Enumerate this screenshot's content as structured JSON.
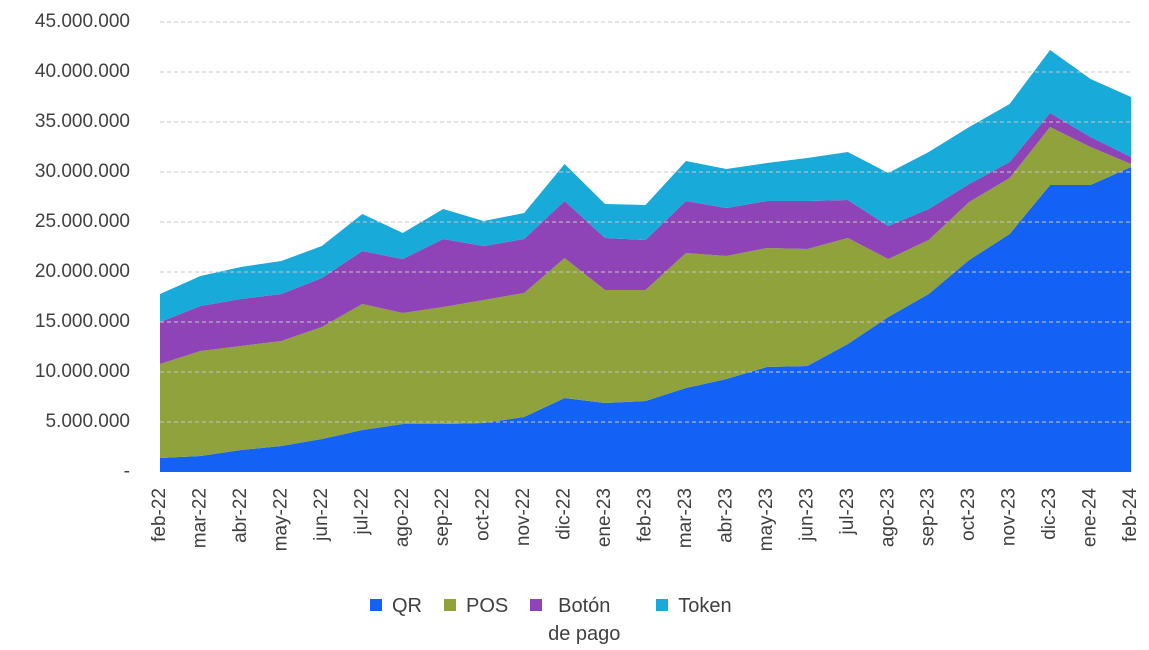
{
  "chart_data": {
    "type": "stacked_area",
    "categories": [
      "feb-22",
      "mar-22",
      "abr-22",
      "may-22",
      "jun-22",
      "jul-22",
      "ago-22",
      "sep-22",
      "oct-22",
      "nov-22",
      "dic-22",
      "ene-23",
      "feb-23",
      "mar-23",
      "abr-23",
      "may-23",
      "jun-23",
      "jul-23",
      "ago-23",
      "sep-23",
      "oct-23",
      "nov-23",
      "dic-23",
      "ene-24",
      "feb-24"
    ],
    "series": [
      {
        "name": "QR",
        "color": "#1462f5",
        "values": [
          1400000,
          1600000,
          2200000,
          2600000,
          3300000,
          4200000,
          4800000,
          4800000,
          4900000,
          5500000,
          7400000,
          6900000,
          7100000,
          8400000,
          9300000,
          10500000,
          10600000,
          12800000,
          15500000,
          17800000,
          21200000,
          23800000,
          28700000,
          28700000,
          30500000
        ]
      },
      {
        "name": "POS",
        "color": "#8fa23b",
        "values": [
          9400000,
          10500000,
          10400000,
          10500000,
          11200000,
          12600000,
          11100000,
          11700000,
          12300000,
          12400000,
          14000000,
          11300000,
          11100000,
          13500000,
          12300000,
          11900000,
          11700000,
          10600000,
          5800000,
          5400000,
          5800000,
          5600000,
          5800000,
          3800000,
          300000
        ]
      },
      {
        "name": "Botón de pago",
        "color": "#8e44b6",
        "values": [
          4200000,
          4500000,
          4700000,
          4700000,
          4900000,
          5300000,
          5400000,
          6800000,
          5400000,
          5400000,
          5700000,
          5200000,
          5000000,
          5200000,
          4800000,
          4700000,
          4800000,
          3800000,
          3300000,
          3100000,
          1800000,
          1600000,
          1400000,
          1000000,
          700000
        ]
      },
      {
        "name": "Token",
        "color": "#18aad9",
        "values": [
          2800000,
          3000000,
          3200000,
          3300000,
          3200000,
          3700000,
          2600000,
          3000000,
          2500000,
          2600000,
          3700000,
          3400000,
          3500000,
          4000000,
          3900000,
          3800000,
          4300000,
          4800000,
          5300000,
          5700000,
          5700000,
          5800000,
          6300000,
          5800000,
          6000000
        ]
      }
    ],
    "ylim": [
      0,
      45000000
    ],
    "yticks": [
      {
        "value": 0,
        "label": "-"
      },
      {
        "value": 5000000,
        "label": "5.000.000"
      },
      {
        "value": 10000000,
        "label": "10.000.000"
      },
      {
        "value": 15000000,
        "label": "15.000.000"
      },
      {
        "value": 20000000,
        "label": "20.000.000"
      },
      {
        "value": 25000000,
        "label": "25.000.000"
      },
      {
        "value": 30000000,
        "label": "30.000.000"
      },
      {
        "value": 35000000,
        "label": "35.000.000"
      },
      {
        "value": 40000000,
        "label": "40.000.000"
      },
      {
        "value": 45000000,
        "label": "45.000.000"
      }
    ],
    "grid": true
  }
}
